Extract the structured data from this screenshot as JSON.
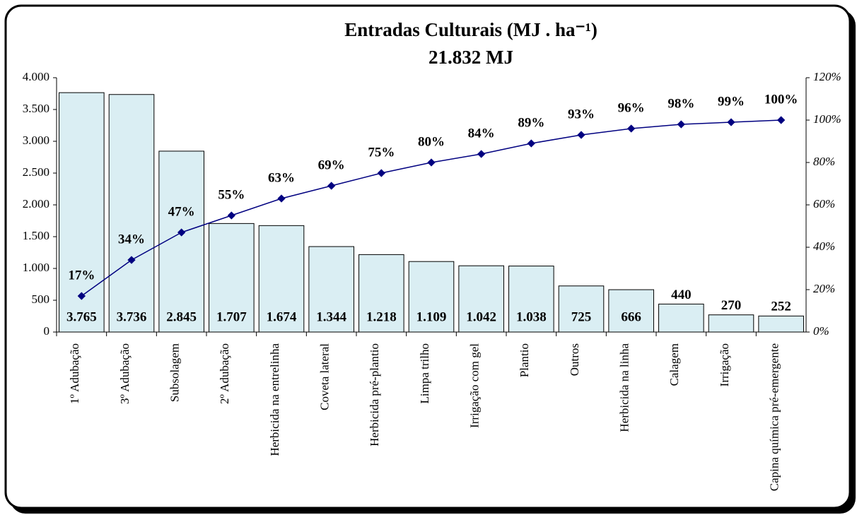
{
  "chart_data": {
    "type": "bar",
    "title": "Entradas Culturais (MJ . ha⁻¹)",
    "subtitle": "21.832 MJ",
    "categories": [
      "1º Adubação",
      "3º Adubação",
      "Subsolagem",
      "2º Adubação",
      "Herbicida na entrelinha",
      "Coveta lateral",
      "Herbicida pré-plantio",
      "Limpa trilho",
      "Irrigação com gel",
      "Plantio",
      "Outros",
      "Herbicida na linha",
      "Calagem",
      "Irrigação",
      "Capina química pré-emergente"
    ],
    "series": [
      {
        "type": "bar",
        "color": "#daeef3",
        "values": [
          3765,
          3736,
          2845,
          1707,
          1674,
          1344,
          1218,
          1109,
          1042,
          1038,
          725,
          666,
          440,
          270,
          252
        ],
        "value_labels": [
          "3.765",
          "3.736",
          "2.845",
          "1.707",
          "1.674",
          "1.344",
          "1.218",
          "1.109",
          "1.042",
          "1.038",
          "725",
          "666",
          "440",
          "270",
          "252"
        ]
      },
      {
        "type": "line",
        "axis": "y2",
        "color": "#000080",
        "values": [
          17,
          34,
          47,
          55,
          63,
          69,
          75,
          80,
          84,
          89,
          93,
          96,
          98,
          99,
          100
        ],
        "value_labels": [
          "17%",
          "34%",
          "47%",
          "55%",
          "63%",
          "69%",
          "75%",
          "80%",
          "84%",
          "89%",
          "93%",
          "96%",
          "98%",
          "99%",
          "100%"
        ]
      }
    ],
    "ylim": [
      0,
      4000
    ],
    "yticks": [
      0,
      500,
      {
        "value": 1000,
        "label": "1.000"
      },
      {
        "value": 1500,
        "label": "1.500"
      },
      {
        "value": 2000,
        "label": "2.000"
      },
      {
        "value": 2500,
        "label": "2.500"
      },
      {
        "value": 3000,
        "label": "3.000"
      },
      {
        "value": 3500,
        "label": "3.500"
      },
      {
        "value": 4000,
        "label": "4.000"
      }
    ],
    "y2lim": [
      0,
      120
    ],
    "y2ticks": [
      {
        "value": 0,
        "label": "0%"
      },
      {
        "value": 20,
        "label": "20%"
      },
      {
        "value": 40,
        "label": "40%"
      },
      {
        "value": 60,
        "label": "60%"
      },
      {
        "value": 80,
        "label": "80%"
      },
      {
        "value": 100,
        "label": "100%"
      },
      {
        "value": 120,
        "label": "120%"
      }
    ]
  }
}
